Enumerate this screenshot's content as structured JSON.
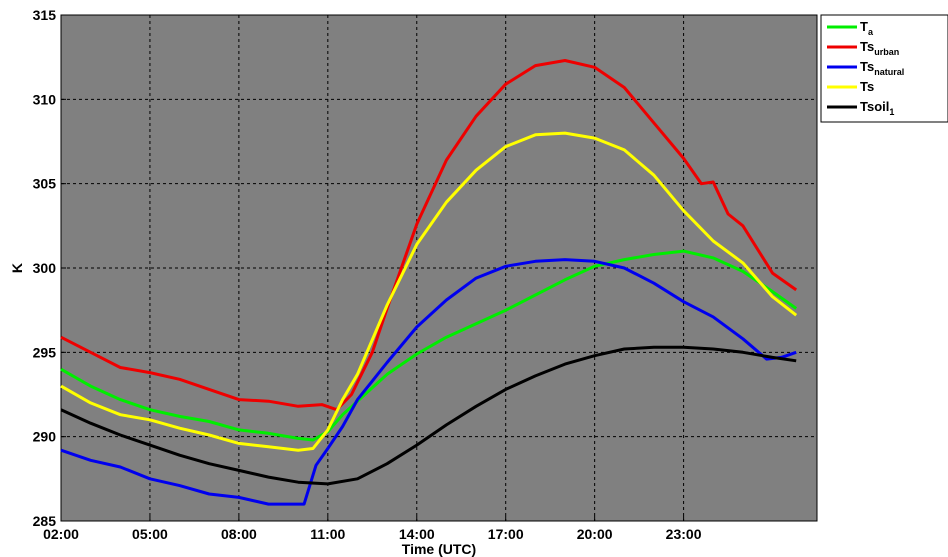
{
  "chart_data": {
    "type": "line",
    "title": "",
    "xlabel": "Time (UTC)",
    "ylabel": "K",
    "xlim": [
      2,
      27.5
    ],
    "ylim": [
      285,
      315
    ],
    "grid": true,
    "legend_position": "outside-top-right",
    "x_ticks": [
      {
        "value": 2,
        "label": "02:00"
      },
      {
        "value": 5,
        "label": "05:00"
      },
      {
        "value": 8,
        "label": "08:00"
      },
      {
        "value": 11,
        "label": "11:00"
      },
      {
        "value": 14,
        "label": "14:00"
      },
      {
        "value": 17,
        "label": "17:00"
      },
      {
        "value": 20,
        "label": "20:00"
      },
      {
        "value": 23,
        "label": "23:00"
      }
    ],
    "y_ticks": [
      {
        "value": 285,
        "label": "285"
      },
      {
        "value": 290,
        "label": "290"
      },
      {
        "value": 295,
        "label": "295"
      },
      {
        "value": 300,
        "label": "300"
      },
      {
        "value": 305,
        "label": "305"
      },
      {
        "value": 310,
        "label": "310"
      },
      {
        "value": 315,
        "label": "315"
      }
    ],
    "series": [
      {
        "name": "T",
        "sub": "a",
        "color": "#00ee00",
        "points": [
          [
            2,
            294.0
          ],
          [
            3,
            293.0
          ],
          [
            4,
            292.2
          ],
          [
            5,
            291.6
          ],
          [
            6,
            291.2
          ],
          [
            7,
            290.9
          ],
          [
            8,
            290.4
          ],
          [
            9,
            290.2
          ],
          [
            10,
            289.9
          ],
          [
            10.5,
            289.8
          ],
          [
            11,
            290.3
          ],
          [
            11.5,
            291.3
          ],
          [
            12,
            292.1
          ],
          [
            13,
            293.7
          ],
          [
            14,
            294.9
          ],
          [
            15,
            295.9
          ],
          [
            16,
            296.7
          ],
          [
            17,
            297.5
          ],
          [
            18,
            298.4
          ],
          [
            19,
            299.3
          ],
          [
            20,
            300.1
          ],
          [
            21,
            300.5
          ],
          [
            22,
            300.8
          ],
          [
            23,
            301.0
          ],
          [
            24,
            300.6
          ],
          [
            25,
            299.8
          ],
          [
            26,
            298.6
          ],
          [
            26.8,
            297.6
          ]
        ]
      },
      {
        "name": "Ts",
        "sub": "urban",
        "color": "#ee0000",
        "points": [
          [
            2,
            295.9
          ],
          [
            3,
            295.0
          ],
          [
            4,
            294.1
          ],
          [
            5,
            293.8
          ],
          [
            6,
            293.4
          ],
          [
            7,
            292.8
          ],
          [
            8,
            292.2
          ],
          [
            9,
            292.1
          ],
          [
            10,
            291.8
          ],
          [
            10.8,
            291.9
          ],
          [
            11.3,
            291.6
          ],
          [
            11.8,
            292.5
          ],
          [
            12.5,
            295.0
          ],
          [
            13,
            297.6
          ],
          [
            14,
            302.6
          ],
          [
            15,
            306.4
          ],
          [
            16,
            309.0
          ],
          [
            17,
            310.9
          ],
          [
            18,
            312.0
          ],
          [
            19,
            312.3
          ],
          [
            20,
            311.9
          ],
          [
            21,
            310.7
          ],
          [
            22,
            308.6
          ],
          [
            23,
            306.5
          ],
          [
            23.6,
            305.0
          ],
          [
            24,
            305.1
          ],
          [
            24.5,
            303.2
          ],
          [
            25,
            302.5
          ],
          [
            26,
            299.7
          ],
          [
            26.8,
            298.7
          ]
        ]
      },
      {
        "name": "Ts",
        "sub": "natural",
        "color": "#0000ee",
        "points": [
          [
            2,
            289.2
          ],
          [
            3,
            288.6
          ],
          [
            4,
            288.2
          ],
          [
            5,
            287.5
          ],
          [
            6,
            287.1
          ],
          [
            7,
            286.6
          ],
          [
            8,
            286.4
          ],
          [
            9,
            286.0
          ],
          [
            10.2,
            286.0
          ],
          [
            10.6,
            288.3
          ],
          [
            11,
            289.3
          ],
          [
            11.5,
            290.6
          ],
          [
            12,
            292.2
          ],
          [
            13,
            294.4
          ],
          [
            14,
            296.5
          ],
          [
            15,
            298.1
          ],
          [
            16,
            299.4
          ],
          [
            17,
            300.1
          ],
          [
            18,
            300.4
          ],
          [
            19,
            300.5
          ],
          [
            20,
            300.4
          ],
          [
            21,
            300.0
          ],
          [
            22,
            299.1
          ],
          [
            23,
            298.0
          ],
          [
            24,
            297.1
          ],
          [
            25,
            295.8
          ],
          [
            25.8,
            294.6
          ],
          [
            26.3,
            294.7
          ],
          [
            26.8,
            295.0
          ]
        ]
      },
      {
        "name": "Ts",
        "sub": "",
        "color": "#ffff00",
        "points": [
          [
            2,
            293.0
          ],
          [
            3,
            292.0
          ],
          [
            4,
            291.3
          ],
          [
            5,
            291.0
          ],
          [
            6,
            290.5
          ],
          [
            7,
            290.1
          ],
          [
            8,
            289.6
          ],
          [
            9,
            289.4
          ],
          [
            10,
            289.2
          ],
          [
            10.5,
            289.3
          ],
          [
            11,
            290.4
          ],
          [
            11.5,
            292.2
          ],
          [
            12,
            293.7
          ],
          [
            13,
            297.8
          ],
          [
            14,
            301.4
          ],
          [
            15,
            303.9
          ],
          [
            16,
            305.8
          ],
          [
            17,
            307.2
          ],
          [
            18,
            307.9
          ],
          [
            19,
            308.0
          ],
          [
            20,
            307.7
          ],
          [
            21,
            307.0
          ],
          [
            22,
            305.5
          ],
          [
            23,
            303.4
          ],
          [
            24,
            301.6
          ],
          [
            25,
            300.3
          ],
          [
            26,
            298.3
          ],
          [
            26.8,
            297.2
          ]
        ]
      },
      {
        "name": "Tsoil",
        "sub": "1",
        "color": "#000000",
        "points": [
          [
            2,
            291.6
          ],
          [
            3,
            290.8
          ],
          [
            4,
            290.1
          ],
          [
            5,
            289.5
          ],
          [
            6,
            288.9
          ],
          [
            7,
            288.4
          ],
          [
            8,
            288.0
          ],
          [
            9,
            287.6
          ],
          [
            10,
            287.3
          ],
          [
            11,
            287.2
          ],
          [
            12,
            287.5
          ],
          [
            13,
            288.4
          ],
          [
            14,
            289.5
          ],
          [
            15,
            290.7
          ],
          [
            16,
            291.8
          ],
          [
            17,
            292.8
          ],
          [
            18,
            293.6
          ],
          [
            19,
            294.3
          ],
          [
            20,
            294.8
          ],
          [
            21,
            295.2
          ],
          [
            22,
            295.3
          ],
          [
            23,
            295.3
          ],
          [
            24,
            295.2
          ],
          [
            25,
            295.0
          ],
          [
            26,
            294.7
          ],
          [
            26.8,
            294.5
          ]
        ]
      }
    ]
  }
}
